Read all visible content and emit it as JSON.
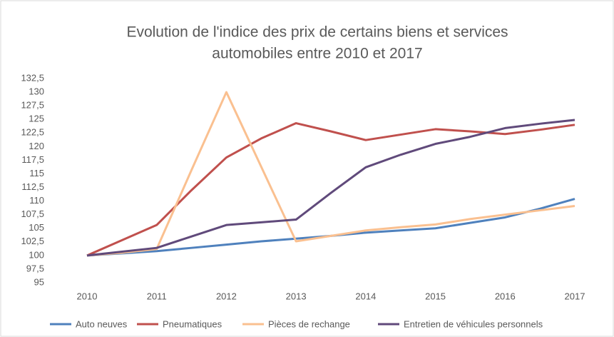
{
  "chart_data": {
    "type": "line",
    "title": [
      "Evolution de l'indice des prix de certains biens et services",
      "automobiles entre 2010 et 2017"
    ],
    "x": [
      2010,
      2010.5,
      2011,
      2011.5,
      2012,
      2012.5,
      2013,
      2013.5,
      2014,
      2014.5,
      2015,
      2015.5,
      2016,
      2016.5,
      2017
    ],
    "series": [
      {
        "name": "Auto neuves",
        "color": "#4f81bd",
        "values": [
          100,
          100.4,
          100.8,
          101.4,
          102,
          102.6,
          103.1,
          103.6,
          104.2,
          104.6,
          105,
          106,
          107,
          108.6,
          110.4
        ]
      },
      {
        "name": "Pneumatiques",
        "color": "#c0504d",
        "values": [
          100,
          102.8,
          105.6,
          112,
          118,
          121.5,
          124.3,
          122.8,
          121.2,
          122.2,
          123.2,
          122.8,
          122.3,
          123.1,
          124
        ]
      },
      {
        "name": "Pièces de rechange",
        "color": "#fac090",
        "values": [
          100,
          100.5,
          101.2,
          115.7,
          130,
          116.3,
          102.6,
          103.6,
          104.6,
          105.2,
          105.7,
          106.7,
          107.5,
          108.3,
          109.1
        ]
      },
      {
        "name": "Entretien de véhicules personnels",
        "color": "#604a7b",
        "values": [
          100,
          100.7,
          101.4,
          103.5,
          105.6,
          106.1,
          106.6,
          111.5,
          116.2,
          118.5,
          120.5,
          121.8,
          123.4,
          124.2,
          124.9
        ]
      }
    ],
    "xlim": [
      2010,
      2017
    ],
    "xticks": [
      2010,
      2011,
      2012,
      2013,
      2014,
      2015,
      2016,
      2017
    ],
    "ylim": [
      95,
      132.5
    ],
    "yticks": [
      95,
      {
        "value": 97.5,
        "label": "97,5"
      },
      100,
      {
        "value": 102.5,
        "label": "102,5"
      },
      105,
      {
        "value": 107.5,
        "label": "107,5"
      },
      110,
      {
        "value": 112.5,
        "label": "112,5"
      },
      115,
      {
        "value": 117.5,
        "label": "117,5"
      },
      120,
      {
        "value": 122.5,
        "label": "122,5"
      },
      125,
      {
        "value": 127.5,
        "label": "127,5"
      },
      130,
      {
        "value": 132.5,
        "label": "132,5"
      }
    ],
    "grid": false,
    "legend": "bottom"
  }
}
